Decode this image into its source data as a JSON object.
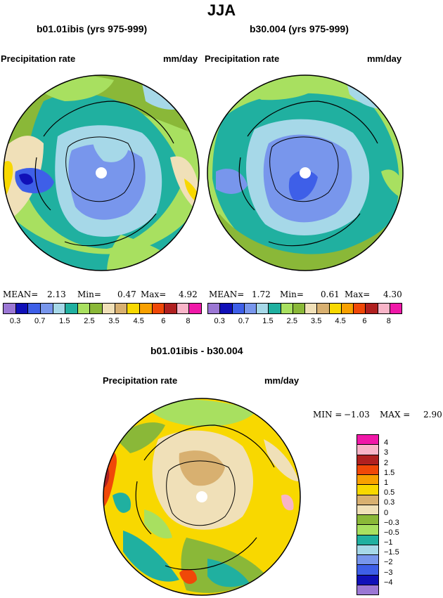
{
  "title": "JJA",
  "panels": [
    {
      "subtitle": "b01.01ibis (yrs 975-999)",
      "left_label": "Precipitation rate",
      "right_label": "mm/day",
      "stats": {
        "mean_label": "MEAN=",
        "mean": "2.13",
        "min_label": "Min=",
        "min": "0.47",
        "max_label": "Max=",
        "max": "4.92"
      }
    },
    {
      "subtitle": "b30.004 (yrs 975-999)",
      "left_label": "Precipitation rate",
      "right_label": "mm/day",
      "stats": {
        "mean_label": "MEAN=",
        "mean": "1.72",
        "min_label": "Min=",
        "min": "0.61",
        "max_label": "Max=",
        "max": "4.30"
      }
    }
  ],
  "precip_colorbar": {
    "colors": [
      "#9b77d4",
      "#1010b8",
      "#3e5fe8",
      "#7896ec",
      "#a6d8e8",
      "#20b0a0",
      "#a8e060",
      "#8ab838",
      "#f0e0b8",
      "#d8b070",
      "#f8d800",
      "#f8a000",
      "#f04808",
      "#b02020",
      "#f8b4c8",
      "#f018a8"
    ],
    "ticks": [
      "0.3",
      "0.7",
      "1.5",
      "2.5",
      "3.5",
      "4.5",
      "6",
      "8"
    ]
  },
  "difference": {
    "subtitle": "b01.01ibis - b30.004",
    "left_label": "Precipitation rate",
    "right_label": "mm/day",
    "min_label": "MIN =",
    "min": "−1.03",
    "max_label": "MAX =",
    "max": "2.90",
    "colorbar": {
      "colors_top_to_bottom": [
        "#f018a8",
        "#f8b4c8",
        "#b02020",
        "#f04808",
        "#f8a000",
        "#f8d800",
        "#d8b070",
        "#f0e0b8",
        "#8ab838",
        "#a8e060",
        "#20b0a0",
        "#a6d8e8",
        "#7896ec",
        "#3e5fe8",
        "#1010b8",
        "#9b77d4"
      ],
      "ticks_top_to_bottom": [
        "4",
        "3",
        "2",
        "1.5",
        "1",
        "0.5",
        "0.3",
        "0",
        "−0.3",
        "−0.5",
        "−1",
        "−1.5",
        "−2",
        "−3",
        "−4"
      ]
    }
  }
}
